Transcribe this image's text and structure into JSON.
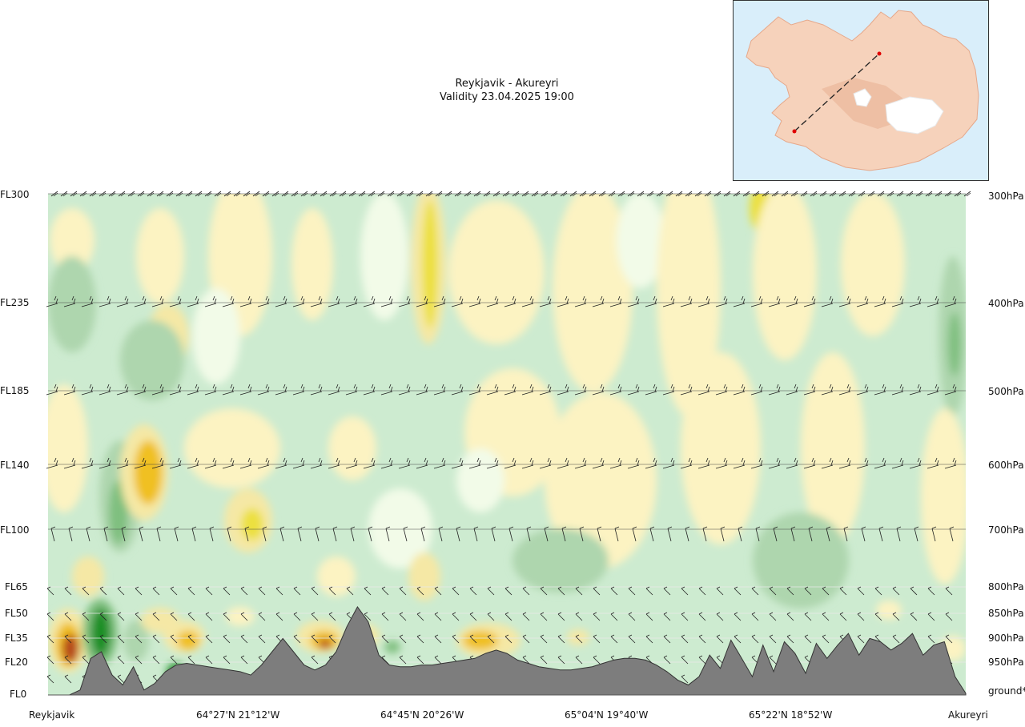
{
  "title": {
    "route": "Reykjavik - Akureyri",
    "validity": "Validity 23.04.2025 19:00"
  },
  "chart_data": {
    "type": "heatmap",
    "title": "Reykjavik - Akureyri",
    "subtitle": "Validity 23.04.2025 19:00",
    "y_left_ticks": [
      "FL300",
      "FL235",
      "FL185",
      "FL140",
      "FL100",
      "FL65",
      "FL50",
      "FL35",
      "FL20",
      "FL0"
    ],
    "y_right_ticks": [
      "300hPa",
      "400hPa",
      "500hPa",
      "600hPa",
      "700hPa",
      "800hPa",
      "850hPa",
      "900hPa",
      "950hPa",
      "ground*"
    ],
    "x_ticks": [
      "Reykjavik",
      "64°27'N 21°12'W",
      "64°45'N 20°26'W",
      "65°04'N 19°40'W",
      "65°22'N 18°52'W",
      "Akureyri"
    ],
    "colors": {
      "strong_green": "#1a8f28",
      "medium_green": "#7fbf7f",
      "light_green": "#aed6ae",
      "pale_green": "#cdebd0",
      "very_pale": "#f2fbe8",
      "pale_yellow": "#fcf3c2",
      "light_yellow": "#f5e8a5",
      "yellow": "#ece040",
      "orange": "#f0c020",
      "dark_orange": "#d98a10",
      "red_brown": "#b5471a",
      "terrain": "#7d7d7d"
    },
    "terrain_profile_ft": [
      0,
      0,
      0,
      300,
      2200,
      2600,
      1200,
      600,
      1700,
      300,
      700,
      1400,
      1800,
      1900,
      1800,
      1700,
      1600,
      1500,
      1400,
      1200,
      1800,
      2600,
      3400,
      2600,
      1800,
      1500,
      1800,
      2600,
      4100,
      5300,
      4400,
      2400,
      1800,
      1700,
      1700,
      1800,
      1800,
      1900,
      2000,
      2100,
      2200,
      2500,
      2700,
      2500,
      2100,
      1900,
      1700,
      1600,
      1500,
      1500,
      1600,
      1700,
      1900,
      2100,
      2200,
      2200,
      2100,
      1800,
      1400,
      900,
      600,
      1100,
      2400,
      1600,
      3300,
      2200,
      1100,
      3000,
      1400,
      3200,
      2500,
      1300,
      3100,
      2200,
      3000,
      3700,
      2400,
      3400,
      3200,
      2700,
      3100,
      3700,
      2400,
      3000,
      3200,
      1100,
      100
    ]
  },
  "inset_map": {
    "start_marker": "Reykjavik",
    "end_marker": "Akureyri"
  }
}
